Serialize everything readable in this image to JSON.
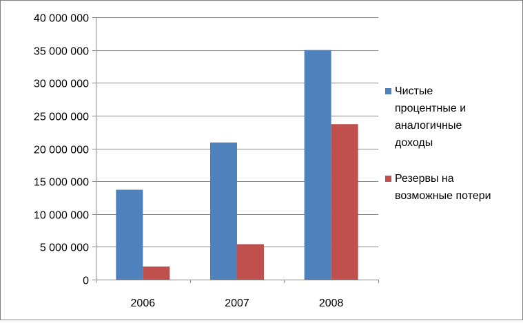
{
  "chart_data": {
    "type": "bar",
    "categories": [
      "2006",
      "2007",
      "2008"
    ],
    "series": [
      {
        "name": "Чистые процентные и аналогичные доходы",
        "name_lines": [
          "Чистые",
          "процентные и",
          "аналогичные",
          "доходы"
        ],
        "color": "#4F81BD",
        "values": [
          13700000,
          20900000,
          35000000
        ]
      },
      {
        "name": "Резервы на возможные потери",
        "name_lines": [
          "Резервы на",
          "возможные потери"
        ],
        "color": "#C0504D",
        "values": [
          2000000,
          5400000,
          23700000
        ]
      }
    ],
    "y_ticks": [
      0,
      5000000,
      10000000,
      15000000,
      20000000,
      25000000,
      30000000,
      35000000,
      40000000
    ],
    "y_tick_labels": [
      "0",
      "5 000 000",
      "10 000 000",
      "15 000 000",
      "20 000 000",
      "25 000 000",
      "30 000 000",
      "35 000 000",
      "40 000 000"
    ],
    "ylim": [
      0,
      40000000
    ],
    "title": "",
    "xlabel": "",
    "ylabel": "",
    "grid": true,
    "legend_position": "right",
    "gridline_color": "#878787",
    "axis_color": "#878787"
  }
}
